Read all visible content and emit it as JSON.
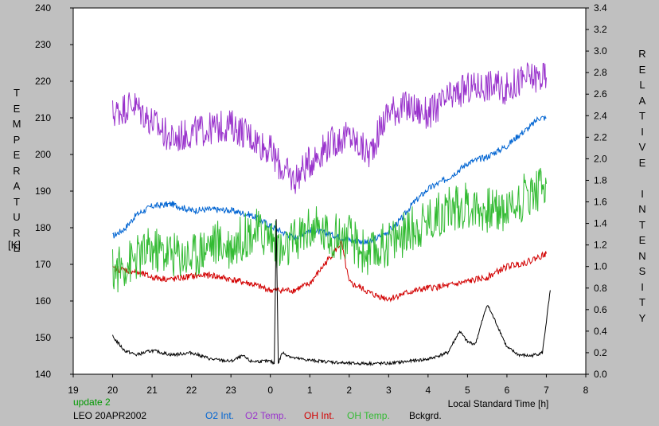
{
  "chart_data": {
    "type": "line",
    "title": "",
    "left_axis": {
      "label": "TEMPERATURE",
      "unit": "[K]",
      "ylim": [
        140,
        240
      ],
      "ticks": [
        140,
        150,
        160,
        170,
        180,
        190,
        200,
        210,
        220,
        230,
        240
      ]
    },
    "right_axis": {
      "label": "RELATIVE INTENSITY",
      "ylim": [
        0.0,
        3.4
      ],
      "ticks": [
        "0.0",
        "0.2",
        "0.4",
        "0.6",
        "0.8",
        "1.0",
        "1.2",
        "1.4",
        "1.6",
        "1.8",
        "2.0",
        "2.2",
        "2.4",
        "2.6",
        "2.8",
        "3.0",
        "3.2",
        "3.4"
      ]
    },
    "x_axis": {
      "label": "Local Standard Time [h]",
      "tick_labels": [
        "19",
        "20",
        "21",
        "22",
        "23",
        "0",
        "1",
        "2",
        "3",
        "4",
        "5",
        "6",
        "7",
        "8"
      ]
    },
    "grid": false,
    "legend_placement": "bottom",
    "series": [
      {
        "name": "O2 Int.",
        "color": "#0064d2",
        "axis": "right",
        "x": [
          20.0,
          20.3,
          20.6,
          21.0,
          21.5,
          22.0,
          22.5,
          23.0,
          23.5,
          24.0,
          24.3,
          24.6,
          25.0,
          25.5,
          26.0,
          26.5,
          27.0,
          27.3,
          27.6,
          28.0,
          28.5,
          28.8,
          29.0,
          29.5,
          30.0,
          30.3,
          30.6,
          30.8,
          31.0
        ],
        "values": [
          1.28,
          1.35,
          1.48,
          1.56,
          1.58,
          1.52,
          1.53,
          1.52,
          1.48,
          1.38,
          1.32,
          1.27,
          1.34,
          1.3,
          1.25,
          1.22,
          1.33,
          1.43,
          1.58,
          1.72,
          1.82,
          1.9,
          1.96,
          2.02,
          2.12,
          2.22,
          2.3,
          2.38,
          2.38
        ]
      },
      {
        "name": "O2 Temp.",
        "color": "#9933cc",
        "axis": "left",
        "x": [
          20.0,
          20.5,
          21.0,
          21.5,
          22.0,
          22.5,
          23.0,
          23.5,
          24.0,
          24.3,
          24.6,
          25.0,
          25.5,
          26.0,
          26.5,
          27.0,
          27.5,
          28.0,
          28.5,
          29.0,
          29.5,
          30.0,
          30.5,
          31.0
        ],
        "values": [
          211,
          214,
          209,
          204,
          206,
          207,
          208,
          205,
          201,
          196,
          193,
          198,
          203,
          205,
          200,
          212,
          213,
          211,
          215,
          218,
          219,
          218,
          221,
          221
        ]
      },
      {
        "name": "OH Int.",
        "color": "#d20000",
        "axis": "right",
        "x": [
          20.0,
          20.5,
          21.0,
          21.5,
          22.0,
          22.5,
          23.0,
          23.5,
          24.0,
          24.3,
          24.6,
          25.0,
          25.5,
          25.8,
          26.0,
          26.3,
          26.6,
          27.0,
          27.5,
          28.0,
          28.5,
          29.0,
          29.5,
          30.0,
          30.5,
          31.0
        ],
        "values": [
          0.98,
          0.96,
          0.9,
          0.88,
          0.91,
          0.92,
          0.88,
          0.84,
          0.78,
          0.78,
          0.78,
          0.84,
          1.08,
          1.22,
          0.85,
          0.8,
          0.74,
          0.7,
          0.76,
          0.8,
          0.82,
          0.86,
          0.9,
          1.0,
          1.04,
          1.12
        ]
      },
      {
        "name": "OH Temp.",
        "color": "#33bb33",
        "axis": "left",
        "x": [
          20.0,
          20.5,
          21.0,
          21.5,
          22.0,
          22.5,
          23.0,
          23.5,
          24.0,
          24.3,
          24.6,
          25.0,
          25.5,
          26.0,
          26.5,
          27.0,
          27.5,
          28.0,
          28.5,
          29.0,
          29.5,
          30.0,
          30.5,
          31.0
        ],
        "values": [
          168,
          171,
          174,
          173,
          172,
          176,
          175,
          179,
          178,
          173,
          176,
          180,
          178,
          177,
          172,
          176,
          179,
          182,
          185,
          186,
          185,
          185,
          189,
          192
        ]
      },
      {
        "name": "Bckgrd.",
        "color": "#000000",
        "axis": "right",
        "x": [
          20.0,
          20.3,
          20.6,
          21.0,
          21.5,
          22.0,
          22.5,
          23.0,
          23.3,
          23.5,
          24.0,
          24.1,
          24.15,
          24.2,
          24.3,
          24.6,
          25.0,
          26.0,
          27.0,
          28.0,
          28.5,
          28.8,
          29.0,
          29.2,
          29.5,
          29.8,
          30.0,
          30.3,
          30.6,
          30.9,
          31.1
        ],
        "values": [
          0.35,
          0.22,
          0.18,
          0.22,
          0.18,
          0.2,
          0.14,
          0.12,
          0.17,
          0.12,
          0.12,
          0.1,
          1.45,
          0.1,
          0.2,
          0.15,
          0.13,
          0.1,
          0.1,
          0.14,
          0.2,
          0.4,
          0.3,
          0.28,
          0.65,
          0.42,
          0.25,
          0.18,
          0.17,
          0.2,
          0.78
        ]
      }
    ]
  },
  "footer": {
    "update": "update 2",
    "site": "LEO 20APR2002",
    "legend": [
      "O2 Int.",
      "O2 Temp.",
      "OH Int.",
      "OH Temp.",
      "Bckgrd."
    ]
  },
  "colors": {
    "background": "#c0c0c0",
    "plot_bg": "#ffffff",
    "update_text": "#009900"
  }
}
